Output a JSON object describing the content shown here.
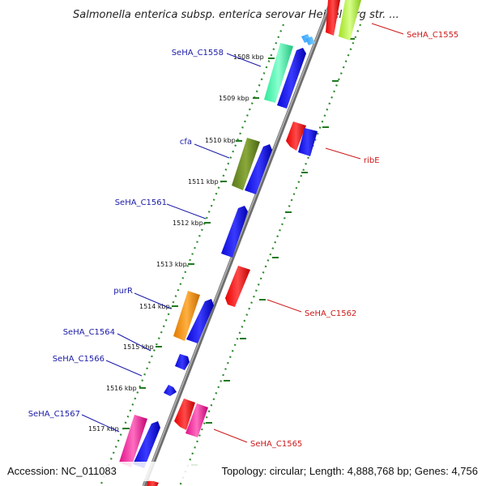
{
  "title": "Salmonella enterica subsp. enterica serovar Heidelberg str. ...",
  "footer": {
    "accession": "Accession: NC_011083",
    "summary": "Topology: circular; Length: 4,888,768 bp; Genes: 4,756"
  },
  "colors": {
    "backbone": "#8a8a8a",
    "left_gene_label": "#1a1aa8",
    "right_gene_label": "#cc1a1a",
    "tick_dots": "#2f8a2f"
  },
  "ticks": [
    "1508 kbp",
    "1509 kbp",
    "1510 kbp",
    "1511 kbp",
    "1512 kbp",
    "1513 kbp",
    "1514 kbp",
    "1515 kbp",
    "1516 kbp",
    "1517 kbp"
  ],
  "gene_labels": [
    {
      "text": "SeHA_C1558",
      "side": "left"
    },
    {
      "text": "cfa",
      "side": "left"
    },
    {
      "text": "SeHA_C1561",
      "side": "left"
    },
    {
      "text": "purR",
      "side": "left"
    },
    {
      "text": "SeHA_C1564",
      "side": "left"
    },
    {
      "text": "SeHA_C1566",
      "side": "left"
    },
    {
      "text": "SeHA_C1567",
      "side": "left"
    },
    {
      "text": "SeHA_C1555",
      "side": "right"
    },
    {
      "text": "ribE",
      "side": "right"
    },
    {
      "text": "SeHA_C1562",
      "side": "right"
    },
    {
      "text": "SeHA_C1565",
      "side": "right"
    }
  ]
}
